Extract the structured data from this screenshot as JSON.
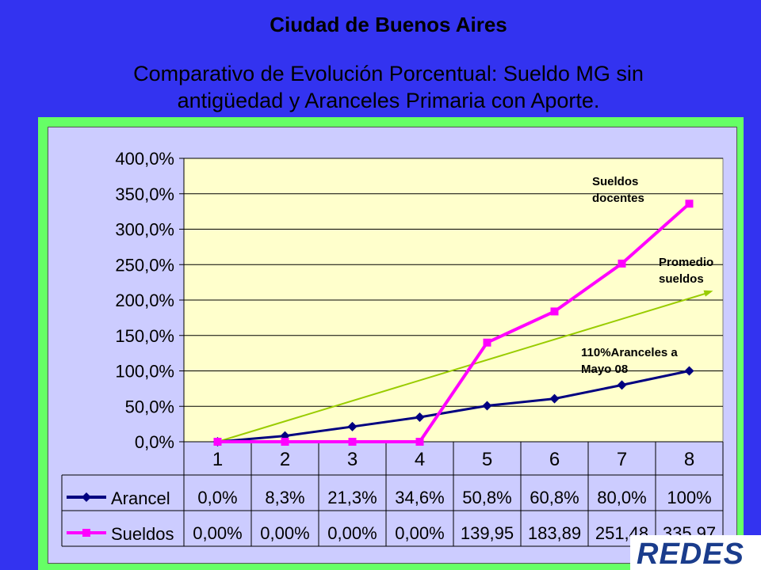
{
  "header": {
    "title": "Ciudad de Buenos Aires",
    "subtitle_line1": "Comparativo de Evolución Porcentual: Sueldo MG sin",
    "subtitle_line2": "antigüedad y Aranceles Primaria con Aporte."
  },
  "chart_data": {
    "type": "line",
    "categories": [
      "1",
      "2",
      "3",
      "4",
      "5",
      "6",
      "7",
      "8"
    ],
    "ylim": [
      0,
      400
    ],
    "yticks": [
      "0,0%",
      "50,0%",
      "100,0%",
      "150,0%",
      "200,0%",
      "250,0%",
      "300,0%",
      "350,0%",
      "400,0%"
    ],
    "grid": true,
    "series": [
      {
        "name": "Arancel",
        "color": "#000080",
        "marker": "diamond",
        "values": [
          0,
          8.3,
          21.3,
          34.6,
          50.8,
          60.8,
          80.0,
          100
        ],
        "table_labels": [
          "0,0%",
          "8,3%",
          "21,3%",
          "34,6%",
          "50,8%",
          "60,8%",
          "80,0%",
          "100%"
        ]
      },
      {
        "name": "Sueldos",
        "color": "#ff00ff",
        "marker": "square",
        "values": [
          0,
          0,
          0,
          0,
          139.95,
          183.89,
          251.48,
          335.97
        ],
        "table_labels": [
          "0,00%",
          "0,00%",
          "0,00%",
          "0,00%",
          "139,95",
          "183,89",
          "251,48",
          "335,97"
        ]
      }
    ],
    "trendline": {
      "color": "#99cc00",
      "from": [
        1,
        0
      ],
      "to": [
        8,
        213
      ]
    },
    "annotations": [
      {
        "line1": "Sueldos",
        "line2": "docentes"
      },
      {
        "line1": "Promedio",
        "line2": "sueldos"
      },
      {
        "line1": "110%Aranceles a",
        "line2": "Mayo 08"
      }
    ]
  },
  "logo": {
    "text": "REDES",
    "color": "#1a3c8c"
  }
}
